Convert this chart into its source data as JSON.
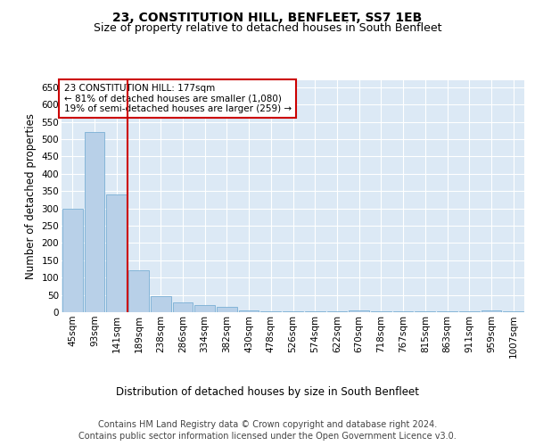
{
  "title": "23, CONSTITUTION HILL, BENFLEET, SS7 1EB",
  "subtitle": "Size of property relative to detached houses in South Benfleet",
  "xlabel": "Distribution of detached houses by size in South Benfleet",
  "ylabel": "Number of detached properties",
  "footer_line1": "Contains HM Land Registry data © Crown copyright and database right 2024.",
  "footer_line2": "Contains public sector information licensed under the Open Government Licence v3.0.",
  "bins": [
    "45sqm",
    "93sqm",
    "141sqm",
    "189sqm",
    "238sqm",
    "286sqm",
    "334sqm",
    "382sqm",
    "430sqm",
    "478sqm",
    "526sqm",
    "574sqm",
    "622sqm",
    "670sqm",
    "718sqm",
    "767sqm",
    "815sqm",
    "863sqm",
    "911sqm",
    "959sqm",
    "1007sqm"
  ],
  "values": [
    300,
    520,
    340,
    120,
    47,
    28,
    20,
    15,
    5,
    3,
    3,
    3,
    3,
    5,
    3,
    3,
    3,
    3,
    3,
    5,
    3
  ],
  "bar_color": "#b8d0e8",
  "bar_edge_color": "#7aafd4",
  "red_line_x": 2.48,
  "red_line_label": "23 CONSTITUTION HILL: 177sqm",
  "annotation_line2": "← 81% of detached houses are smaller (1,080)",
  "annotation_line3": "19% of semi-detached houses are larger (259) →",
  "annotation_box_color": "#ffffff",
  "annotation_box_edge": "#cc0000",
  "red_line_color": "#cc0000",
  "ylim": [
    0,
    670
  ],
  "yticks": [
    0,
    50,
    100,
    150,
    200,
    250,
    300,
    350,
    400,
    450,
    500,
    550,
    600,
    650
  ],
  "fig_bg_color": "#ffffff",
  "plot_bg_color": "#dce9f5",
  "title_fontsize": 10,
  "subtitle_fontsize": 9,
  "axis_label_fontsize": 8.5,
  "tick_fontsize": 7.5,
  "footer_fontsize": 7
}
